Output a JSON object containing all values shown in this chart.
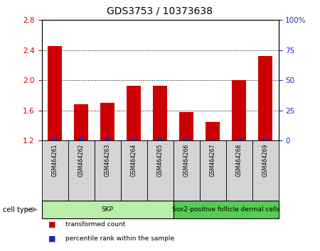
{
  "title": "GDS3753 / 10373638",
  "samples": [
    "GSM464261",
    "GSM464262",
    "GSM464263",
    "GSM464264",
    "GSM464265",
    "GSM464266",
    "GSM464267",
    "GSM464268",
    "GSM464269"
  ],
  "transformed_counts": [
    2.45,
    1.68,
    1.7,
    1.93,
    1.93,
    1.58,
    1.45,
    2.0,
    2.32
  ],
  "percentile_ranks": [
    2.5,
    2.5,
    2.5,
    2.0,
    2.5,
    2.0,
    1.5,
    2.0,
    2.0
  ],
  "left_ylim": [
    1.2,
    2.8
  ],
  "right_ylim": [
    0,
    100
  ],
  "left_yticks": [
    1.2,
    1.6,
    2.0,
    2.4,
    2.8
  ],
  "right_yticks": [
    0,
    25,
    50,
    75,
    100
  ],
  "right_yticklabels": [
    "0",
    "25",
    "50",
    "75",
    "100%"
  ],
  "bar_color_red": "#cc0000",
  "bar_color_blue": "#2222cc",
  "bar_width": 0.55,
  "blue_bar_width": 0.15,
  "cell_type_groups": [
    {
      "label": "SKP",
      "start": 0,
      "end": 4,
      "color": "#bbeeaa"
    },
    {
      "label": "Sox2-positive follicle dermal cells",
      "start": 5,
      "end": 8,
      "color": "#55cc55"
    }
  ],
  "cell_type_label": "cell type",
  "legend_items": [
    {
      "color": "#cc0000",
      "label": "transformed count"
    },
    {
      "color": "#2222cc",
      "label": "percentile rank within the sample"
    }
  ],
  "title_fontsize": 10,
  "tick_fontsize": 7.5,
  "axis_label_color_left": "#cc0000",
  "axis_label_color_right": "#2222cc",
  "sample_box_color": "#d4d4d4",
  "background_color": "#ffffff"
}
